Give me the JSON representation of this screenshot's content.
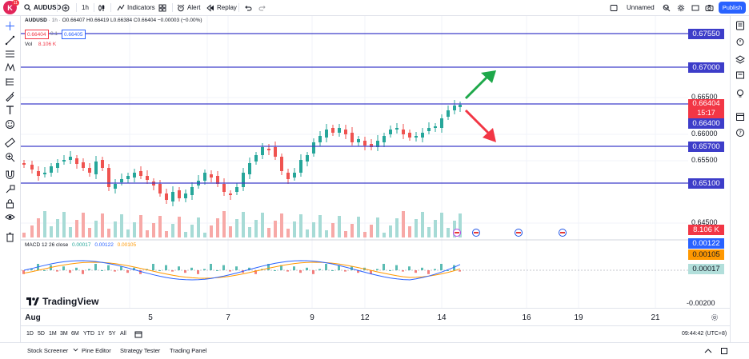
{
  "topbar": {
    "avatar_letter": "K",
    "avatar_badge": "11",
    "symbol": "AUDUSD",
    "interval": "1h",
    "indicators": "Indicators",
    "alert": "Alert",
    "replay": "Replay",
    "layout_name": "Unnamed",
    "publish": "Publish"
  },
  "legend": {
    "ohlc": "O0.66407 H0.66419 L0.66384 C0.66404 −0.00003 (−0.00%)",
    "price_box_1": "0.66404",
    "price_box_sep": "0.1",
    "price_box_2": "0.66405",
    "volume_label": "Vol",
    "volume_value": "8.106 K",
    "macd_label": "MACD 12 26 close",
    "macd_v1": "0.00017",
    "macd_v2": "0.00122",
    "macd_v3": "0.00105"
  },
  "price_scale": {
    "ticks": [
      "0.66500",
      "0.66000",
      "0.65500",
      "0.64500",
      "-0.00200"
    ],
    "level_labels": [
      "0.67550",
      "0.67000",
      "0.66400",
      "0.65700",
      "0.65100"
    ],
    "current_price": "0.66404",
    "countdown": "15:17",
    "volume": "8.106 K",
    "macd_values": [
      "0.00122",
      "0.00105",
      "0.00017"
    ]
  },
  "colors": {
    "level_line": "#3d3dc9",
    "up": "#26a69a",
    "down": "#ef5350",
    "current": "#f23645",
    "macd_line": "#2962ff",
    "signal_line": "#ff9800",
    "accent": "#2962ff",
    "arrow_up": "#1ea84a",
    "arrow_down": "#f23645"
  },
  "time_axis": {
    "labels": [
      "Aug",
      "5",
      "7",
      "9",
      "12",
      "14",
      "16",
      "19",
      "21"
    ]
  },
  "range_bar": {
    "items": [
      "1D",
      "5D",
      "1M",
      "3M",
      "6M",
      "YTD",
      "1Y",
      "5Y",
      "All"
    ],
    "clock": "09:44:42 (UTC+8)"
  },
  "bottom_bar": {
    "tabs": [
      "Stock Screener",
      "Pine Editor",
      "Strategy Tester",
      "Trading Panel"
    ]
  },
  "branding": {
    "name": "TradingView"
  },
  "left_tools": [
    "crosshair-icon",
    "trendline-icon",
    "fib-icon",
    "pattern-icon",
    "ruler-tool-icon",
    "brush-icon",
    "text-icon",
    "emoji-icon",
    "measure-icon",
    "zoom-icon",
    "magnet-icon",
    "lock-icon",
    "eye-icon",
    "trash-icon"
  ],
  "right_tools": [
    "watchlist-icon",
    "alerts-icon",
    "layers-icon",
    "news-icon",
    "ideas-icon",
    "calendar-icon",
    "help-icon"
  ]
}
